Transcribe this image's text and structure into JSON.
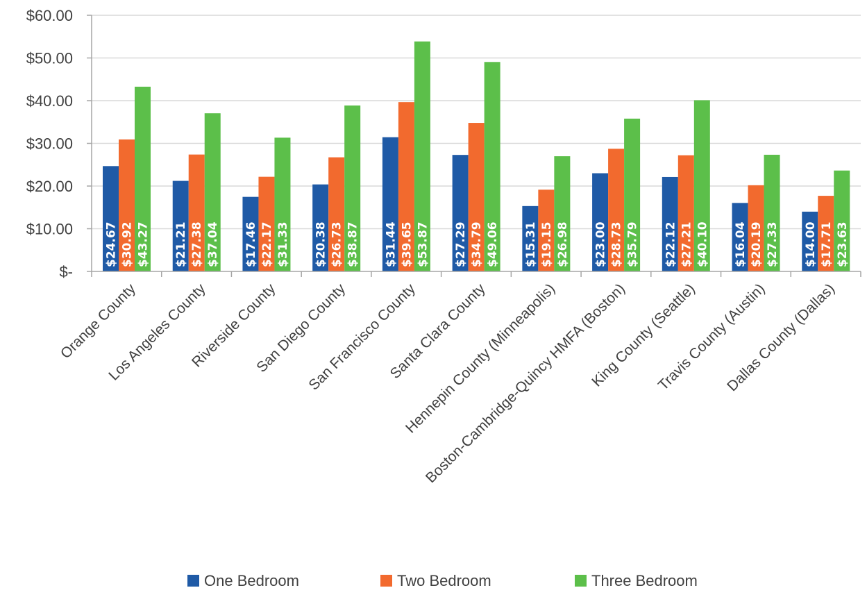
{
  "chart_data": {
    "type": "bar",
    "title": "",
    "xlabel": "",
    "ylabel": "",
    "ylim": [
      0,
      60
    ],
    "grid": true,
    "legend_position": "bottom",
    "y_ticks": [
      {
        "value": 0,
        "label": "$-"
      },
      {
        "value": 10,
        "label": "$10.00"
      },
      {
        "value": 20,
        "label": "$20.00"
      },
      {
        "value": 30,
        "label": "$30.00"
      },
      {
        "value": 40,
        "label": "$40.00"
      },
      {
        "value": 50,
        "label": "$50.00"
      },
      {
        "value": 60,
        "label": "$60.00"
      }
    ],
    "categories": [
      "Orange County",
      "Los Angeles County",
      "Riverside County",
      "San Diego County",
      "San Francisco County",
      "Santa Clara County",
      "Hennepin County (Minneapolis)",
      "Boston-Cambridge-Quincy HMFA (Boston)",
      "King County (Seattle)",
      "Travis County (Austin)",
      "Dallas County (Dallas)"
    ],
    "series": [
      {
        "name": "One Bedroom",
        "color": "#1f5aa6",
        "values": [
          24.67,
          21.21,
          17.46,
          20.38,
          31.44,
          27.29,
          15.31,
          23.0,
          22.12,
          16.04,
          14.0
        ],
        "labels": [
          "$24.67",
          "$21.21",
          "$17.46",
          "$20.38",
          "$31.44",
          "$27.29",
          "$15.31",
          "$23.00",
          "$22.12",
          "$16.04",
          "$14.00"
        ]
      },
      {
        "name": "Two Bedroom",
        "color": "#f26a2e",
        "values": [
          30.92,
          27.38,
          22.17,
          26.73,
          39.65,
          34.79,
          19.15,
          28.73,
          27.21,
          20.19,
          17.71
        ],
        "labels": [
          "$30.92",
          "$27.38",
          "$22.17",
          "$26.73",
          "$39.65",
          "$34.79",
          "$19.15",
          "$28.73",
          "$27.21",
          "$20.19",
          "$17.71"
        ]
      },
      {
        "name": "Three Bedroom",
        "color": "#5cbf4a",
        "values": [
          43.27,
          37.04,
          31.33,
          38.87,
          53.87,
          49.06,
          26.98,
          35.79,
          40.1,
          27.33,
          23.63
        ],
        "labels": [
          "$43.27",
          "$37.04",
          "$31.33",
          "$38.87",
          "$53.87",
          "$49.06",
          "$26.98",
          "$35.79",
          "$40.10",
          "$27.33",
          "$23.63"
        ]
      }
    ],
    "colors": {
      "grid": "#d9d9d9",
      "axis": "#a6a6a6",
      "text": "#404040",
      "data_label": "#ffffff"
    }
  }
}
